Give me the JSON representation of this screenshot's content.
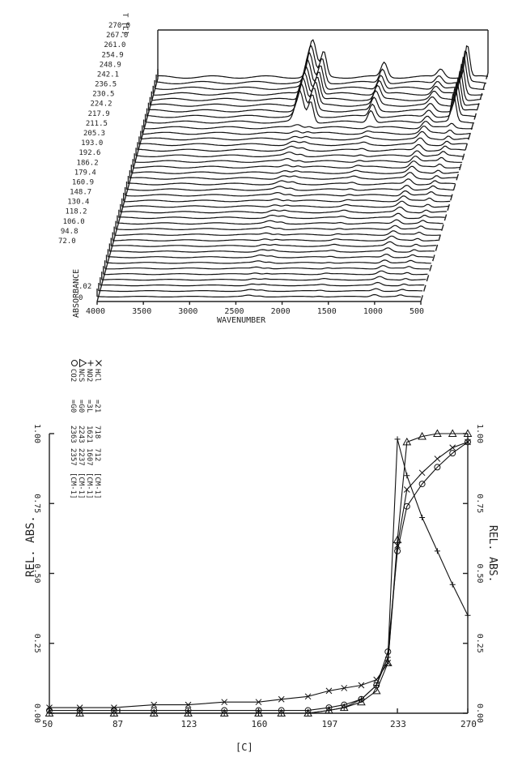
{
  "chart_data": [
    {
      "type": "line",
      "subtype": "3d-waterfall",
      "temp_axis_label": "T [C]",
      "temp_ticks": [
        "270.0",
        "267.0",
        "261.0",
        "254.9",
        "248.9",
        "242.1",
        "236.5",
        "230.5",
        "224.2",
        "217.9",
        "211.5",
        "205.3",
        "193.0",
        "192.6",
        "186.2",
        "179.4",
        "160.9",
        "148.7",
        "130.4",
        "118.2",
        "106.0",
        "94.8",
        "72.0"
      ],
      "ylabel": "ABSORBANCE",
      "z_ticks": [
        ".02",
        "0"
      ],
      "xlabel": "WAVENUMBER",
      "x_ticks": [
        "4000",
        "3500",
        "3000",
        "2500",
        "2000",
        "1500",
        "1000",
        "500"
      ],
      "xlim": [
        4000,
        500
      ],
      "n_spectra": 40,
      "peaks_cm1": [
        2360,
        2240,
        1600,
        1000,
        720
      ]
    },
    {
      "type": "line",
      "legend_placement": "top-left",
      "xlabel": "[C]",
      "ylabel_left": "REL. ABS.",
      "ylabel_right": "REL. ABS.",
      "xlim": [
        50,
        270
      ],
      "ylim": [
        0,
        1.0
      ],
      "x_ticks": [
        "50",
        "87",
        "123",
        "160",
        "197",
        "233",
        "270"
      ],
      "y_ticks_left": [
        "0.00",
        "0.25",
        "0.50",
        "0.75",
        "1.00"
      ],
      "y_ticks_right": [
        "0.00",
        "0.25",
        "0.50",
        "0.75",
        "1.00"
      ],
      "categories": [
        50,
        66,
        84,
        105,
        123,
        142,
        160,
        172,
        186,
        197,
        205,
        214,
        222,
        228,
        233,
        238,
        246,
        254,
        262,
        270
      ],
      "series": [
        {
          "name": "CO2",
          "marker": "circle",
          "legend_cols": [
            "=G0",
            "2363",
            "2357",
            "[CM-1]"
          ],
          "values": [
            0.01,
            0.01,
            0.01,
            0.01,
            0.01,
            0.01,
            0.01,
            0.01,
            0.01,
            0.02,
            0.03,
            0.05,
            0.1,
            0.22,
            0.58,
            0.74,
            0.82,
            0.88,
            0.93,
            0.97
          ]
        },
        {
          "name": "NCS",
          "marker": "triangle",
          "legend_cols": [
            "=G0",
            "2243",
            "2237",
            "[CM-1]"
          ],
          "values": [
            0.0,
            0.0,
            0.0,
            0.0,
            0.0,
            0.0,
            0.0,
            0.0,
            0.0,
            0.01,
            0.02,
            0.04,
            0.08,
            0.18,
            0.62,
            0.97,
            0.99,
            1.0,
            1.0,
            1.0
          ]
        },
        {
          "name": "NO2",
          "marker": "plus",
          "legend_cols": [
            "=3L",
            "1621",
            "1607",
            "[CM-1]"
          ],
          "values": [
            0.0,
            0.0,
            0.0,
            0.0,
            0.0,
            0.0,
            0.0,
            0.0,
            0.0,
            0.01,
            0.02,
            0.05,
            0.1,
            0.2,
            0.98,
            0.85,
            0.7,
            0.58,
            0.46,
            0.35
          ]
        },
        {
          "name": "HCl",
          "marker": "x",
          "legend_cols": [
            "=21",
            "718",
            "712",
            "[CM-1]"
          ],
          "values": [
            0.02,
            0.02,
            0.02,
            0.03,
            0.03,
            0.04,
            0.04,
            0.05,
            0.06,
            0.08,
            0.09,
            0.1,
            0.12,
            0.18,
            0.6,
            0.8,
            0.86,
            0.91,
            0.95,
            0.97
          ]
        }
      ]
    }
  ]
}
